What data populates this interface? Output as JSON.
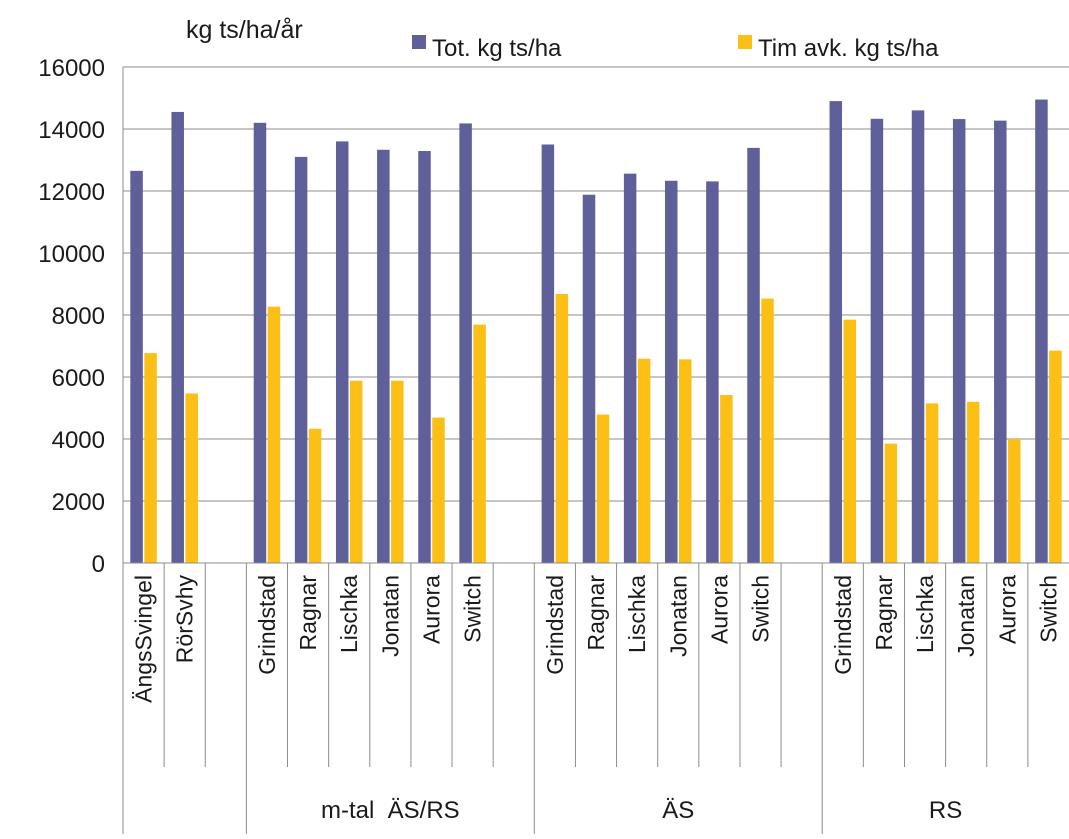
{
  "chart_data": {
    "type": "bar",
    "ylabel": "kg ts/ha/år",
    "ylim": [
      0,
      16000
    ],
    "yticks": [
      0,
      2000,
      4000,
      6000,
      8000,
      10000,
      12000,
      14000,
      16000
    ],
    "grid": true,
    "legend_position": "top",
    "categories": [
      "ÄngsSvingel",
      "RörSvhy",
      "",
      "Grindstad",
      "Ragnar",
      "Lischka",
      "Jonatan",
      "Aurora",
      "Switch",
      "",
      "Grindstad",
      "Ragnar",
      "Lischka",
      "Jonatan",
      "Aurora",
      "Switch",
      "",
      "Grindstad",
      "Ragnar",
      "Lischka",
      "Jonatan",
      "Aurora",
      "Switch"
    ],
    "groups": [
      {
        "label": "",
        "start": 0,
        "end": 2
      },
      {
        "label": "m-tal  ÄS/RS",
        "start": 3,
        "end": 9
      },
      {
        "label": "ÄS",
        "start": 10,
        "end": 16
      },
      {
        "label": "RS",
        "start": 17,
        "end": 22
      }
    ],
    "series": [
      {
        "name": "Tot. kg ts/ha",
        "color": "#5f5f99",
        "values": [
          12650,
          14550,
          null,
          14200,
          13100,
          13600,
          13330,
          13290,
          14180,
          null,
          13500,
          11880,
          12560,
          12330,
          12310,
          13390,
          null,
          14900,
          14330,
          14600,
          14320,
          14270,
          14950
        ]
      },
      {
        "name": "Tim avk. kg ts/ha",
        "color": "#fbbf15",
        "values": [
          6770,
          5470,
          null,
          8270,
          4330,
          5880,
          5880,
          4690,
          7690,
          null,
          8680,
          4790,
          6590,
          6570,
          5420,
          8530,
          null,
          7850,
          3850,
          5150,
          5200,
          4000,
          6850
        ]
      }
    ]
  }
}
